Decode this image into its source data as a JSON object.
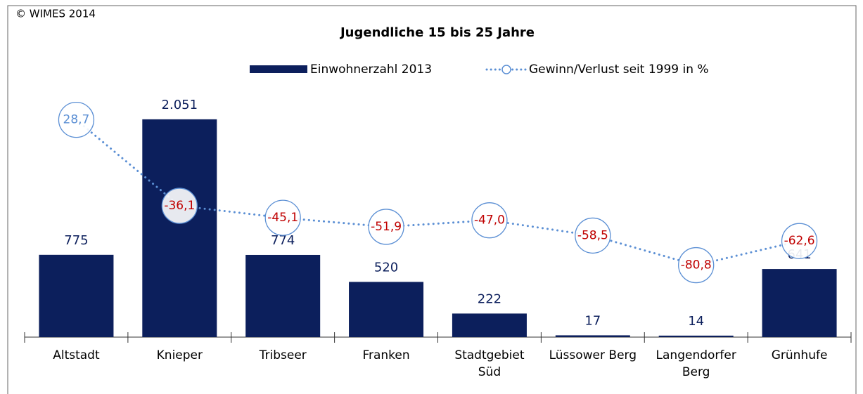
{
  "chart_data": {
    "type": "bar-line",
    "copyright": "© WIMES 2014",
    "title": "Jugendliche 15 bis 25 Jahre",
    "categories": [
      "Altstadt",
      "Knieper",
      "Tribseer",
      "Franken",
      "Stadtgebiet\nSüd",
      "Lüssower Berg",
      "Langendorfer\nBerg",
      "Grünhufe"
    ],
    "series": [
      {
        "name": "Einwohnerzahl 2013",
        "color": "#0c1f5c",
        "type": "bar",
        "values": [
          775,
          2051,
          774,
          520,
          222,
          17,
          14,
          641
        ],
        "value_labels": [
          "775",
          "2.051",
          "774",
          "520",
          "222",
          "17",
          "14",
          "641"
        ]
      },
      {
        "name": "Gewinn/Verlust seit 1999 in %",
        "color": "#5b8fd4",
        "type": "line",
        "axis": "y2",
        "values": [
          28.7,
          -36.1,
          -45.1,
          -51.9,
          -47.0,
          -58.5,
          -80.8,
          -62.6
        ],
        "value_labels": [
          "28,7",
          "-36,1",
          "-45,1",
          "-51,9",
          "-47,0",
          "-58,5",
          "-80,8",
          "-62,6"
        ]
      }
    ],
    "ylim": [
      0,
      2500
    ],
    "y2lim": [
      -135,
      65
    ]
  }
}
